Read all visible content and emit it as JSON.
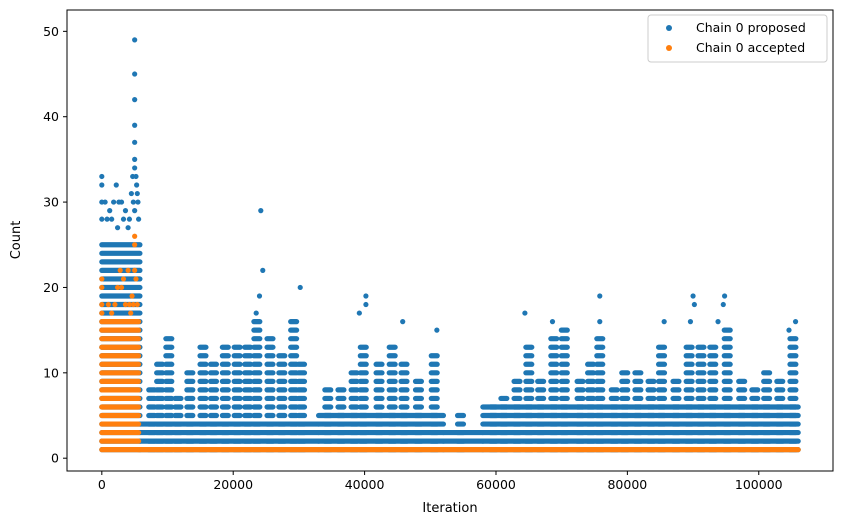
{
  "chart_data": {
    "type": "scatter",
    "xlabel": "Iteration",
    "ylabel": "Count",
    "xlim": [
      -5300,
      111300
    ],
    "ylim": [
      -1.5,
      52.5
    ],
    "xticks": [
      0,
      20000,
      40000,
      60000,
      80000,
      100000
    ],
    "xtick_labels": [
      "0",
      "20000",
      "40000",
      "60000",
      "80000",
      "100000"
    ],
    "yticks": [
      0,
      10,
      20,
      30,
      40,
      50
    ],
    "ytick_labels": [
      "0",
      "10",
      "20",
      "30",
      "40",
      "50"
    ],
    "grid": false,
    "legend": "top-right",
    "series": [
      {
        "name": "Chain 0 proposed",
        "color": "#1f77b4",
        "regions": [
          {
            "x": [
              0,
              5800
            ],
            "ymin": 1,
            "ymax": 25
          },
          {
            "x": [
              5800,
              33000
            ],
            "ymin": 1,
            "ymax": 4
          },
          {
            "x": [
              33000,
              52000
            ],
            "ymin": 1,
            "ymax": 5
          },
          {
            "x": [
              52000,
              58000
            ],
            "ymin": 1,
            "ymax": 3
          },
          {
            "x": [
              58000,
              106000
            ],
            "ymin": 1,
            "ymax": 6
          }
        ],
        "columns": [
          {
            "x": 7600,
            "ymax": 8
          },
          {
            "x": 8800,
            "ymax": 11
          },
          {
            "x": 10200,
            "ymax": 14
          },
          {
            "x": 11600,
            "ymax": 7
          },
          {
            "x": 13400,
            "ymax": 10
          },
          {
            "x": 15400,
            "ymax": 13
          },
          {
            "x": 17000,
            "ymax": 11
          },
          {
            "x": 18800,
            "ymax": 13
          },
          {
            "x": 20600,
            "ymax": 13
          },
          {
            "x": 22200,
            "ymax": 13
          },
          {
            "x": 23600,
            "ymax": 16
          },
          {
            "x": 25600,
            "ymax": 14
          },
          {
            "x": 27400,
            "ymax": 12
          },
          {
            "x": 29200,
            "ymax": 16
          },
          {
            "x": 30400,
            "ymax": 11
          },
          {
            "x": 34400,
            "ymax": 8
          },
          {
            "x": 36400,
            "ymax": 8
          },
          {
            "x": 38400,
            "ymax": 10
          },
          {
            "x": 39800,
            "ymax": 13
          },
          {
            "x": 42200,
            "ymax": 11
          },
          {
            "x": 44200,
            "ymax": 13
          },
          {
            "x": 46000,
            "ymax": 11
          },
          {
            "x": 48200,
            "ymax": 9
          },
          {
            "x": 50600,
            "ymax": 12
          },
          {
            "x": 54600,
            "ymax": 5
          },
          {
            "x": 59600,
            "ymax": 6
          },
          {
            "x": 61200,
            "ymax": 7
          },
          {
            "x": 63200,
            "ymax": 9
          },
          {
            "x": 65000,
            "ymax": 13
          },
          {
            "x": 66800,
            "ymax": 9
          },
          {
            "x": 68800,
            "ymax": 14
          },
          {
            "x": 70400,
            "ymax": 15
          },
          {
            "x": 72800,
            "ymax": 9
          },
          {
            "x": 74400,
            "ymax": 11
          },
          {
            "x": 75800,
            "ymax": 14
          },
          {
            "x": 78000,
            "ymax": 8
          },
          {
            "x": 79600,
            "ymax": 10
          },
          {
            "x": 81600,
            "ymax": 10
          },
          {
            "x": 83600,
            "ymax": 9
          },
          {
            "x": 85200,
            "ymax": 13
          },
          {
            "x": 87400,
            "ymax": 9
          },
          {
            "x": 89400,
            "ymax": 13
          },
          {
            "x": 91200,
            "ymax": 13
          },
          {
            "x": 93000,
            "ymax": 13
          },
          {
            "x": 95200,
            "ymax": 15
          },
          {
            "x": 97400,
            "ymax": 9
          },
          {
            "x": 99400,
            "ymax": 8
          },
          {
            "x": 101200,
            "ymax": 10
          },
          {
            "x": 103200,
            "ymax": 9
          },
          {
            "x": 105200,
            "ymax": 14
          }
        ],
        "points": [
          [
            0,
            33
          ],
          [
            0,
            32
          ],
          [
            0,
            30
          ],
          [
            0,
            28
          ],
          [
            500,
            30
          ],
          [
            800,
            28
          ],
          [
            1200,
            29
          ],
          [
            1500,
            28
          ],
          [
            1800,
            30
          ],
          [
            2200,
            32
          ],
          [
            2400,
            27
          ],
          [
            2600,
            30
          ],
          [
            3000,
            30
          ],
          [
            3300,
            28
          ],
          [
            3600,
            29
          ],
          [
            4000,
            27
          ],
          [
            4200,
            28
          ],
          [
            4500,
            31
          ],
          [
            4700,
            33
          ],
          [
            4800,
            30
          ],
          [
            5000,
            49
          ],
          [
            5000,
            45
          ],
          [
            5000,
            42
          ],
          [
            5000,
            39
          ],
          [
            5000,
            37
          ],
          [
            5000,
            35
          ],
          [
            5000,
            34
          ],
          [
            5200,
            33
          ],
          [
            5300,
            32
          ],
          [
            5400,
            31
          ],
          [
            5500,
            30
          ],
          [
            5600,
            28
          ],
          [
            5000,
            29
          ],
          [
            24200,
            29
          ],
          [
            24500,
            22
          ],
          [
            23500,
            17
          ],
          [
            24000,
            19
          ],
          [
            30200,
            20
          ],
          [
            40200,
            19
          ],
          [
            40200,
            18
          ],
          [
            39200,
            17
          ],
          [
            45800,
            16
          ],
          [
            51000,
            15
          ],
          [
            64400,
            17
          ],
          [
            68600,
            16
          ],
          [
            75800,
            19
          ],
          [
            75800,
            16
          ],
          [
            85600,
            16
          ],
          [
            90000,
            19
          ],
          [
            90200,
            18
          ],
          [
            89600,
            16
          ],
          [
            94800,
            19
          ],
          [
            94600,
            18
          ],
          [
            93800,
            16
          ],
          [
            105600,
            16
          ],
          [
            104600,
            15
          ]
        ]
      },
      {
        "name": "Chain 0 accepted",
        "color": "#ff7f0e",
        "regions": [
          {
            "x": [
              0,
              5600
            ],
            "ymin": 1,
            "ymax": 16
          },
          {
            "x": [
              5600,
              106000
            ],
            "ymin": 1,
            "ymax": 1
          }
        ],
        "points": [
          [
            0,
            18
          ],
          [
            0,
            17
          ],
          [
            0,
            20
          ],
          [
            0,
            21
          ],
          [
            1000,
            18
          ],
          [
            1500,
            17
          ],
          [
            2000,
            18
          ],
          [
            2400,
            20
          ],
          [
            2800,
            22
          ],
          [
            3000,
            20
          ],
          [
            3300,
            21
          ],
          [
            3600,
            18
          ],
          [
            4000,
            22
          ],
          [
            4200,
            18
          ],
          [
            4400,
            17
          ],
          [
            4600,
            19
          ],
          [
            4800,
            18
          ],
          [
            5000,
            22
          ],
          [
            5000,
            26
          ],
          [
            5000,
            25
          ],
          [
            5200,
            21
          ],
          [
            5400,
            18
          ]
        ]
      }
    ]
  }
}
